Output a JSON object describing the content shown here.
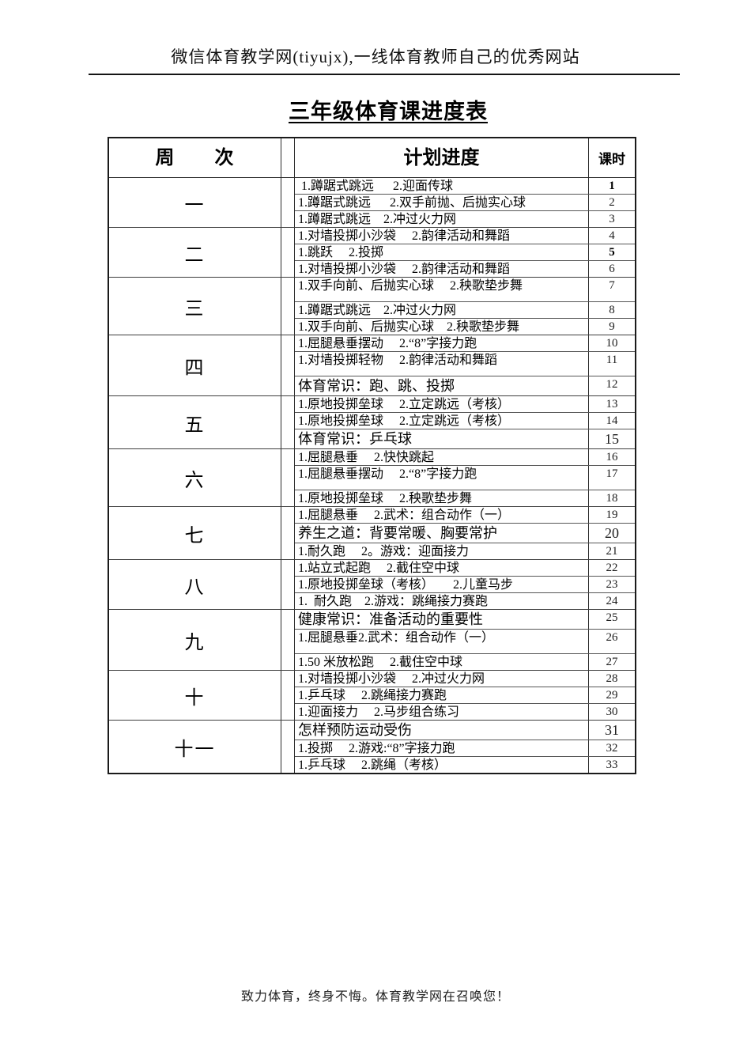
{
  "page": {
    "site_header": "微信体育教学网(tiyujx),一线体育教师自己的优秀网站",
    "title": "三年级体育课进度表",
    "footer": "致力体育，终身不悔。体育教学网在召唤您！"
  },
  "table": {
    "headers": {
      "week": "周　　次",
      "plan": "计划进度",
      "hours": "课时"
    },
    "weeks": [
      {
        "label": "一",
        "rows": [
          {
            "text": " 1.蹲踞式跳远      2.迎面传球",
            "hour": "1",
            "b": true
          },
          {
            "text": "1.蹲踞式跳远      2.双手前抛、后抛实心球",
            "hour": "2"
          },
          {
            "text": "1.蹲踞式跳远    2.冲过火力网",
            "hour": "3"
          }
        ]
      },
      {
        "label": "二",
        "rows": [
          {
            "text": "1.对墙投掷小沙袋     2.韵律活动和舞蹈",
            "hour": "4"
          },
          {
            "text": "1.跳跃     2.投掷",
            "hour": "5",
            "b": true
          },
          {
            "text": "1.对墙投掷小沙袋     2.韵律活动和舞蹈",
            "hour": "6"
          }
        ]
      },
      {
        "label": "三",
        "rows": [
          {
            "text": "1.双手向前、后抛实心球     2.秧歌垫步舞",
            "hour": "7",
            "tall": true
          },
          {
            "text": "1.蹲踞式跳远    2.冲过火力网",
            "hour": "8"
          },
          {
            "text": "1.双手向前、后抛实心球    2.秧歌垫步舞",
            "hour": "9"
          }
        ]
      },
      {
        "label": "四",
        "rows": [
          {
            "text": "1.屈腿悬垂摆动     2.“8”字接力跑",
            "hour": "10"
          },
          {
            "text": "1.对墙投掷轻物     2.韵律活动和舞蹈",
            "hour": "11",
            "tall": true
          },
          {
            "text": "体育常识：跑、跳、投掷",
            "hour": "12",
            "em": true
          }
        ]
      },
      {
        "label": "五",
        "rows": [
          {
            "text": "1.原地投掷垒球     2.立定跳远（考核）",
            "hour": "13"
          },
          {
            "text": "1.原地投掷垒球     2.立定跳远（考核）",
            "hour": "14"
          },
          {
            "text": "体育常识：乒乓球",
            "hour": "15",
            "em": true,
            "emh": true
          }
        ]
      },
      {
        "label": "六",
        "rows": [
          {
            "text": "1.屈腿悬垂     2.快快跳起",
            "hour": "16"
          },
          {
            "text": "1.屈腿悬垂摆动     2.“8”字接力跑",
            "hour": "17",
            "tall": true
          },
          {
            "text": "1.原地投掷垒球     2.秧歌垫步舞",
            "hour": "18"
          }
        ]
      },
      {
        "label": "七",
        "rows": [
          {
            "text": "1.屈腿悬垂     2.武术：组合动作（一）",
            "hour": "19"
          },
          {
            "text": "养生之道：背要常暖、胸要常护",
            "hour": "20",
            "em": true,
            "emh": true
          },
          {
            "text": "1.耐久跑     2。游戏：迎面接力",
            "hour": "21"
          }
        ]
      },
      {
        "label": "八",
        "rows": [
          {
            "text": "1.站立式起跑     2.截住空中球",
            "hour": "22"
          },
          {
            "text": "1.原地投掷垒球（考核）      2.儿童马步",
            "hour": "23"
          },
          {
            "text": "1.  耐久跑    2.游戏：跳绳接力赛跑",
            "hour": "24"
          }
        ]
      },
      {
        "label": "九",
        "rows": [
          {
            "text": "健康常识：准备活动的重要性",
            "hour": "25",
            "em": true
          },
          {
            "text": "1.屈腿悬垂2.武术：组合动作（一）",
            "hour": "26",
            "tall": true
          },
          {
            "text": "1.50 米放松跑     2.截住空中球",
            "hour": "27"
          }
        ]
      },
      {
        "label": "十",
        "rows": [
          {
            "text": "1.对墙投掷小沙袋     2.冲过火力网",
            "hour": "28"
          },
          {
            "text": "1.乒乓球     2.跳绳接力赛跑",
            "hour": "29"
          },
          {
            "text": "1.迎面接力     2.马步组合练习",
            "hour": "30"
          }
        ]
      },
      {
        "label": "十一",
        "rows": [
          {
            "text": "怎样预防运动受伤",
            "hour": "31",
            "em": true,
            "emh": true
          },
          {
            "text": "1.投掷     2.游戏:“8”字接力跑",
            "hour": "32"
          },
          {
            "text": "1.乒乓球     2.跳绳（考核）",
            "hour": "33"
          }
        ]
      }
    ]
  }
}
